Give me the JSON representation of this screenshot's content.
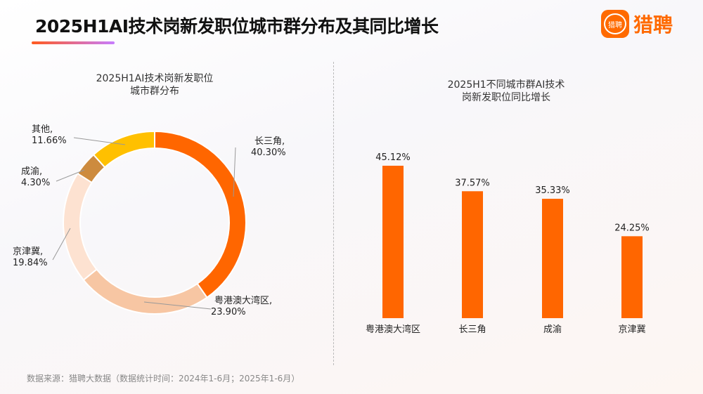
{
  "title": "2025H1AI技术岗新发职位城市群分布及其同比增长",
  "logo": {
    "icon_text": "猎聘",
    "text": "猎聘",
    "color": "#ff6a00"
  },
  "source": "数据来源：猎聘大数据（数据统计时间：2024年1-6月；2025年1-6月）",
  "chart_data": [
    {
      "type": "pie",
      "donut": true,
      "title": "2025H1AI技术岗新发职位\n城市群分布",
      "title_line1": "2025H1AI技术岗新发职位",
      "title_line2": "城市群分布",
      "slices": [
        {
          "label": "长三角",
          "value": 40.3,
          "display": "40.30%",
          "color": "#ff6600"
        },
        {
          "label": "粤港澳大湾区",
          "value": 23.9,
          "display": "23.90%",
          "color": "#f7c6a3"
        },
        {
          "label": "京津冀",
          "value": 19.84,
          "display": "19.84%",
          "color": "#fde2d1"
        },
        {
          "label": "成渝",
          "value": 4.3,
          "display": "4.30%",
          "color": "#cd8b3e"
        },
        {
          "label": "其他",
          "value": 11.66,
          "display": "11.66%",
          "color": "#ffc000"
        }
      ]
    },
    {
      "type": "bar",
      "title_line1": "2025H1不同城市群AI技术",
      "title_line2": "岗新发职位同比增长",
      "categories": [
        "粤港澳大湾区",
        "长三角",
        "成渝",
        "京津冀"
      ],
      "values": [
        45.12,
        37.57,
        35.33,
        24.25
      ],
      "labels": [
        "45.12%",
        "37.57%",
        "35.33%",
        "24.25%"
      ],
      "color": "#ff6600",
      "unit": "%"
    }
  ]
}
